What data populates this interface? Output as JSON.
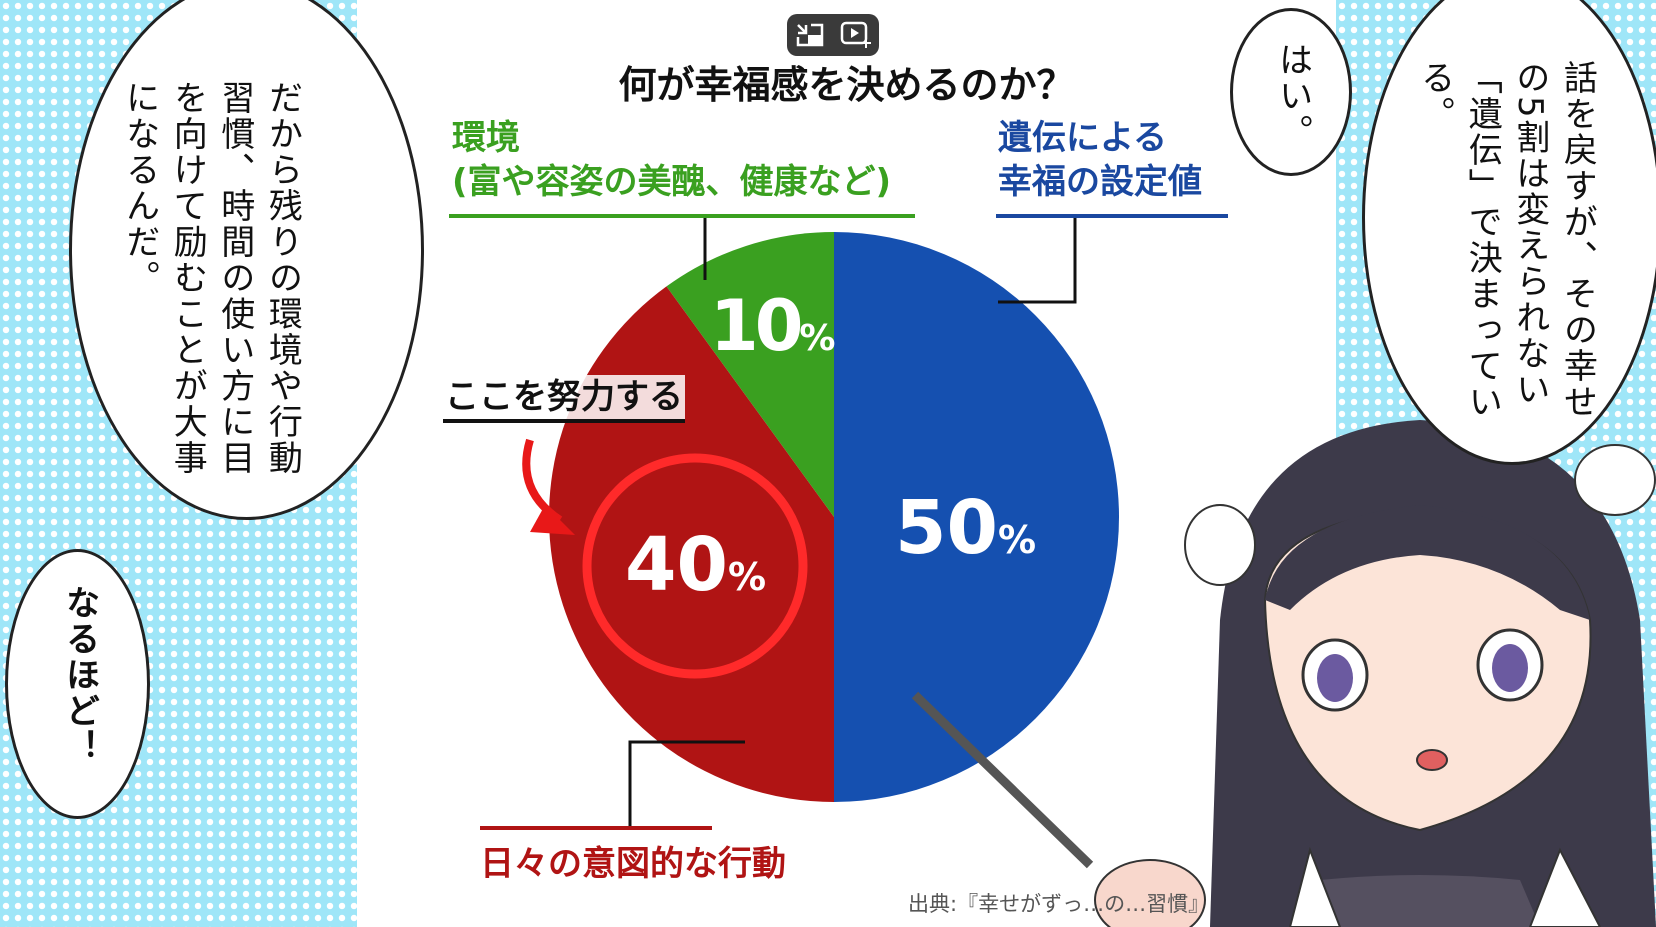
{
  "chart_data": {
    "type": "pie",
    "title": "何が幸福感を決めるのか？",
    "slices": [
      {
        "label": "遺伝による幸福の設定値",
        "value": 50,
        "display": "50%",
        "color": "#1550b0"
      },
      {
        "label": "日々の意図的な行動",
        "value": 40,
        "display": "40%",
        "color": "#b01414"
      },
      {
        "label": "環境(富や容姿の美醜、健康など)",
        "value": 10,
        "display": "10%",
        "color": "#3aa020"
      }
    ],
    "annotation": "ここを努力する",
    "source": "出典:『幸せがずっ…の…習慣』"
  },
  "labels": {
    "genetic_1": "遺伝による",
    "genetic_2": "幸福の設定値",
    "env_1": "環境",
    "env_2": "(富や容姿の美醜、健康など)",
    "action": "日々の意図的な行動",
    "p50": "50",
    "p40": "40",
    "p10": "10",
    "pct": "%"
  },
  "bubbles": {
    "left": "だから残りの環境や行動習慣、時間の使い方に目を向けて励むことが大事になるんだ。",
    "naruhodo": "なるほど！",
    "hai": "はい。",
    "right": "話を戻すが、その幸せの5割は変えられない「遺伝」で決まっている。"
  },
  "video_controls": {
    "icons": [
      "exit-pip-icon",
      "play-sparkle-icon"
    ]
  }
}
